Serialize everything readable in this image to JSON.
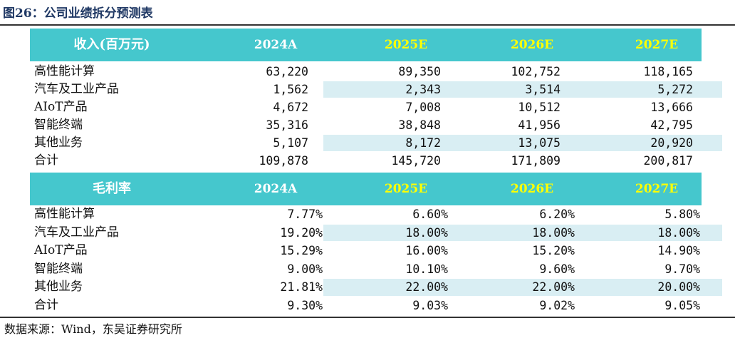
{
  "figure_title": "图26：公司业绩拆分预测表",
  "revenue_table": {
    "header": {
      "label": "收入(百万元)",
      "years": [
        "2024A",
        "2025E",
        "2026E",
        "2027E"
      ]
    },
    "rows": [
      {
        "name": "高性能计算",
        "values": [
          "63,220",
          "89,350",
          "102,752",
          "118,165"
        ],
        "shaded": false
      },
      {
        "name": "汽车及工业产品",
        "values": [
          "1,562",
          "2,343",
          "3,514",
          "5,272"
        ],
        "shaded": true
      },
      {
        "name": "AIoT产品",
        "values": [
          "4,672",
          "7,008",
          "10,512",
          "13,666"
        ],
        "shaded": false
      },
      {
        "name": "智能终端",
        "values": [
          "35,316",
          "38,848",
          "41,956",
          "42,795"
        ],
        "shaded": false
      },
      {
        "name": "其他业务",
        "values": [
          "5,107",
          "8,172",
          "13,075",
          "20,920"
        ],
        "shaded": true
      },
      {
        "name": "合计",
        "values": [
          "109,878",
          "145,720",
          "171,809",
          "200,817"
        ],
        "shaded": false
      }
    ]
  },
  "margin_table": {
    "header": {
      "label": "毛利率",
      "years": [
        "2024A",
        "2025E",
        "2026E",
        "2027E"
      ]
    },
    "rows": [
      {
        "name": "高性能计算",
        "values": [
          "7.77%",
          "6.60%",
          "6.20%",
          "5.80%"
        ],
        "shaded": false
      },
      {
        "name": "汽车及工业产品",
        "values": [
          "19.20%",
          "18.00%",
          "18.00%",
          "18.00%"
        ],
        "shaded": true
      },
      {
        "name": "AIoT产品",
        "values": [
          "15.29%",
          "16.00%",
          "15.20%",
          "14.90%"
        ],
        "shaded": false
      },
      {
        "name": "智能终端",
        "values": [
          "9.00%",
          "10.10%",
          "9.60%",
          "9.70%"
        ],
        "shaded": false
      },
      {
        "name": "其他业务",
        "values": [
          "21.81%",
          "22.00%",
          "22.00%",
          "20.00%"
        ],
        "shaded": true
      },
      {
        "name": "合计",
        "values": [
          "9.30%",
          "9.03%",
          "9.02%",
          "9.05%"
        ],
        "shaded": false
      }
    ]
  },
  "source_note": "数据来源：Wind，东吴证券研究所",
  "colors": {
    "header_band": "#45c7cd",
    "actual_year_text": "#ffffff",
    "estimate_year_text": "#ffff00",
    "row_shade": "#d9eef3",
    "title_text": "#1f3864"
  }
}
